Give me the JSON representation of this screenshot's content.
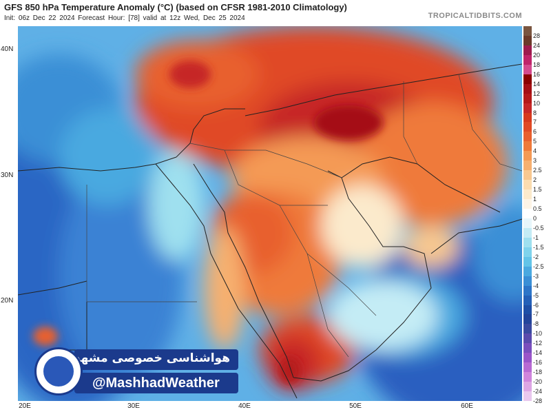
{
  "header": {
    "title": "GFS 850 hPa Temperature Anomaly (°C) (based on CFSR 1981-2010 Climatology)",
    "subtitle": "Init: 06z Dec 22 2024   Forecast Hour: [78]   valid at 12z Wed, Dec 25 2024",
    "site": "TROPICALTIDBITS.COM"
  },
  "axes": {
    "lat_labels": [
      "40N",
      "30N",
      "20N"
    ],
    "lon_labels": [
      "20E",
      "30E",
      "40E",
      "50E",
      "60E"
    ]
  },
  "colorbar": {
    "labels": [
      "28",
      "24",
      "20",
      "18",
      "16",
      "14",
      "12",
      "10",
      "8",
      "7",
      "6",
      "5",
      "4",
      "3",
      "2.5",
      "2",
      "1.5",
      "1",
      "0.5",
      "0",
      "-0.5",
      "-1",
      "-1.5",
      "-2",
      "-2.5",
      "-3",
      "-4",
      "-5",
      "-6",
      "-7",
      "-8",
      "-10",
      "-12",
      "-14",
      "-16",
      "-18",
      "-20",
      "-24",
      "-28"
    ],
    "colors": [
      "#7a5540",
      "#6b3a2a",
      "#9e1b4e",
      "#c0246a",
      "#d44a8e",
      "#8b0000",
      "#a50f15",
      "#b51a1a",
      "#c62828",
      "#d63a1e",
      "#e04a25",
      "#e8602e",
      "#ef7a3a",
      "#f49a55",
      "#f6b070",
      "#f8c890",
      "#fadcb0",
      "#fbeacc",
      "#fdf4e6",
      "#ffffff",
      "#e8f6fb",
      "#c4ecf5",
      "#9fe0ef",
      "#7fd3ec",
      "#63c4e8",
      "#4aa9e0",
      "#3a8fd6",
      "#2d75c8",
      "#2460b8",
      "#1f4fa6",
      "#23449a",
      "#3a4aa0",
      "#5a4bad",
      "#7a4fbd",
      "#9a55c9",
      "#b86ad3",
      "#cf85dc",
      "#dda6e4",
      "#e9c8ee"
    ]
  },
  "banner": {
    "persian": "هواشناسی خصوصی مشهد",
    "handle": "@MashhadWeather"
  }
}
